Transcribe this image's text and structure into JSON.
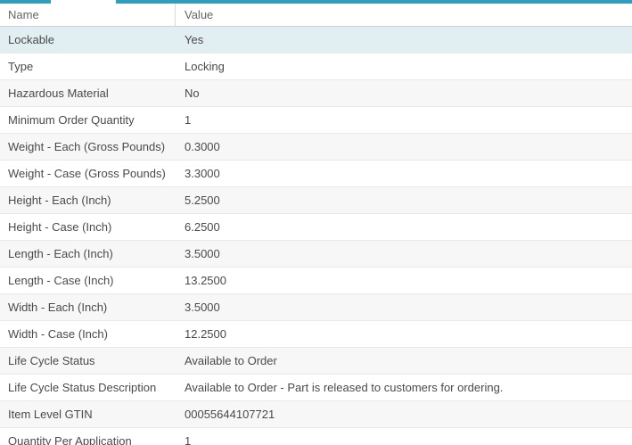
{
  "colors": {
    "accent_teal": "#2f9dbe",
    "selected_row_bg": "#e1eef2",
    "stripe_row_bg": "#f7f7f7",
    "row_border": "#e9e9e9",
    "header_border": "#d0d0d0",
    "header_separator": "#d9d9d9",
    "text": "#4a4a4a",
    "header_text": "#666666"
  },
  "header": {
    "name_label": "Name",
    "value_label": "Value"
  },
  "table": {
    "rows": [
      {
        "name": "Lockable",
        "value": "Yes",
        "selected": true
      },
      {
        "name": "Type",
        "value": "Locking"
      },
      {
        "name": "Hazardous Material",
        "value": "No"
      },
      {
        "name": "Minimum Order Quantity",
        "value": "1"
      },
      {
        "name": "Weight - Each (Gross Pounds)",
        "value": "0.3000"
      },
      {
        "name": "Weight - Case (Gross Pounds)",
        "value": "3.3000"
      },
      {
        "name": "Height - Each (Inch)",
        "value": "5.2500"
      },
      {
        "name": "Height - Case (Inch)",
        "value": "6.2500"
      },
      {
        "name": "Length - Each (Inch)",
        "value": "3.5000"
      },
      {
        "name": "Length - Case (Inch)",
        "value": "13.2500"
      },
      {
        "name": "Width - Each (Inch)",
        "value": "3.5000"
      },
      {
        "name": "Width - Case (Inch)",
        "value": "12.2500"
      },
      {
        "name": "Life Cycle Status",
        "value": "Available to Order"
      },
      {
        "name": "Life Cycle Status Description",
        "value": "Available to Order - Part is released to customers for ordering."
      },
      {
        "name": "Item Level GTIN",
        "value": "00055644107721"
      },
      {
        "name": "Quantity Per Application",
        "value": "1"
      }
    ]
  }
}
